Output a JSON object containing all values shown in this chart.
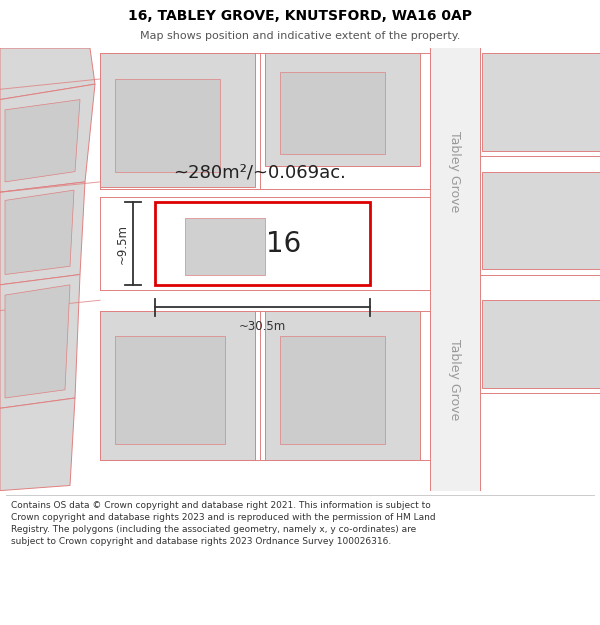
{
  "title_line1": "16, TABLEY GROVE, KNUTSFORD, WA16 0AP",
  "title_line2": "Map shows position and indicative extent of the property.",
  "footer_text": "Contains OS data © Crown copyright and database right 2021. This information is subject to Crown copyright and database rights 2023 and is reproduced with the permission of HM Land Registry. The polygons (including the associated geometry, namely x, y co-ordinates) are subject to Crown copyright and database rights 2023 Ordnance Survey 100026316.",
  "map_bg": "#f7f7f7",
  "plot_fill": "#ffffff",
  "plot_stroke": "#dd0000",
  "road_fill": "#f0f0f0",
  "building_fill": "#d8d8d8",
  "building_stroke": "#e08080",
  "area_text": "~280m²/~0.069ac.",
  "number_text": "16",
  "dim_width": "~30.5m",
  "dim_height": "~9.5m",
  "road_label_top": "Tabley Grove",
  "road_label_bottom": "Tabley Grove",
  "header_bg": "#ffffff",
  "footer_bg": "#ffffff",
  "dim_color": "#333333",
  "text_color": "#222222"
}
